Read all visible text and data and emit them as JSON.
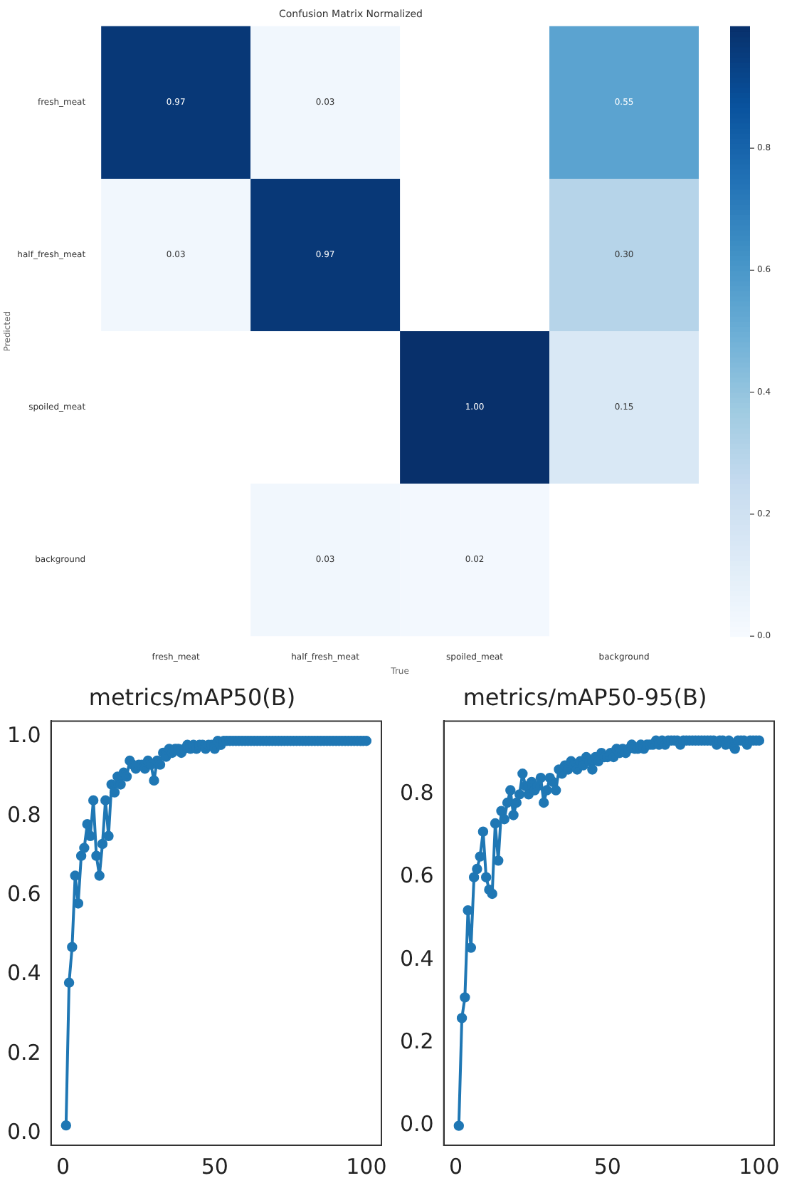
{
  "chart_data": [
    {
      "type": "heatmap",
      "title": "Confusion Matrix Normalized",
      "xlabel": "True",
      "ylabel": "Predicted",
      "categories": [
        "fresh_meat",
        "half_fresh_meat",
        "spoiled_meat",
        "background"
      ],
      "y_categories": [
        "fresh_meat",
        "half_fresh_meat",
        "spoiled_meat",
        "background"
      ],
      "cells": [
        [
          0.97,
          0.03,
          null,
          0.55
        ],
        [
          0.03,
          0.97,
          null,
          0.3
        ],
        [
          null,
          null,
          1.0,
          0.15
        ],
        [
          null,
          0.03,
          0.02,
          null
        ]
      ],
      "cell_labels": [
        [
          "0.97",
          "0.03",
          null,
          "0.55"
        ],
        [
          "0.03",
          "0.97",
          null,
          "0.30"
        ],
        [
          null,
          null,
          "1.00",
          "0.15"
        ],
        [
          null,
          "0.03",
          "0.02",
          null
        ]
      ],
      "clim": [
        0,
        1
      ],
      "cticks": [
        {
          "value": 0,
          "label": "0.0"
        },
        {
          "value": 0.2,
          "label": "0.2"
        },
        {
          "value": 0.4,
          "label": "0.4"
        },
        {
          "value": 0.6,
          "label": "0.6"
        },
        {
          "value": 0.8,
          "label": "0.8"
        }
      ]
    },
    {
      "type": "line",
      "title": "metrics/mAP50(B)",
      "marker": "circle",
      "grid": false,
      "x": [
        1,
        2,
        3,
        4,
        5,
        6,
        7,
        8,
        9,
        10,
        11,
        12,
        13,
        14,
        15,
        16,
        17,
        18,
        19,
        20,
        21,
        22,
        23,
        24,
        25,
        26,
        27,
        28,
        29,
        30,
        31,
        32,
        33,
        34,
        35,
        36,
        37,
        38,
        39,
        40,
        41,
        42,
        43,
        44,
        45,
        46,
        47,
        48,
        49,
        50,
        51,
        52,
        53,
        54,
        55,
        56,
        57,
        58,
        59,
        60,
        61,
        62,
        63,
        64,
        65,
        66,
        67,
        68,
        69,
        70,
        71,
        72,
        73,
        74,
        75,
        76,
        77,
        78,
        79,
        80,
        81,
        82,
        83,
        84,
        85,
        86,
        87,
        88,
        89,
        90,
        91,
        92,
        93,
        94,
        95,
        96,
        97,
        98,
        99,
        100
      ],
      "series": [
        {
          "color": "#1f77b4",
          "values": [
            0.02,
            0.38,
            0.47,
            0.65,
            0.58,
            0.7,
            0.72,
            0.78,
            0.75,
            0.84,
            0.7,
            0.65,
            0.73,
            0.84,
            0.75,
            0.88,
            0.86,
            0.9,
            0.88,
            0.91,
            0.9,
            0.94,
            0.93,
            0.92,
            0.93,
            0.93,
            0.92,
            0.94,
            0.93,
            0.89,
            0.94,
            0.93,
            0.96,
            0.95,
            0.97,
            0.96,
            0.97,
            0.97,
            0.96,
            0.97,
            0.98,
            0.97,
            0.98,
            0.97,
            0.98,
            0.98,
            0.97,
            0.98,
            0.98,
            0.97,
            0.99,
            0.98,
            0.99,
            0.99,
            0.99,
            0.99,
            0.99,
            0.99,
            0.99,
            0.99,
            0.99,
            0.99,
            0.99,
            0.99,
            0.99,
            0.99,
            0.99,
            0.99,
            0.99,
            0.99,
            0.99,
            0.99,
            0.99,
            0.99,
            0.99,
            0.99,
            0.99,
            0.99,
            0.99,
            0.99,
            0.99,
            0.99,
            0.99,
            0.99,
            0.99,
            0.99,
            0.99,
            0.99,
            0.99,
            0.99,
            0.99,
            0.99,
            0.99,
            0.99,
            0.99,
            0.99,
            0.99,
            0.99,
            0.99,
            0.99
          ]
        }
      ],
      "xlim": [
        -3.95,
        104.95
      ],
      "xticks": [
        0,
        50,
        100
      ],
      "ylim": [
        -0.03,
        1.04
      ],
      "yticks": [
        {
          "value": 0,
          "label": "0.0"
        },
        {
          "value": 0.2,
          "label": "0.2"
        },
        {
          "value": 0.4,
          "label": "0.4"
        },
        {
          "value": 0.6,
          "label": "0.6"
        },
        {
          "value": 0.8,
          "label": "0.8"
        },
        {
          "value": 1,
          "label": "1.0"
        }
      ]
    },
    {
      "type": "line",
      "title": "metrics/mAP50-95(B)",
      "marker": "circle",
      "grid": false,
      "x": [
        1,
        2,
        3,
        4,
        5,
        6,
        7,
        8,
        9,
        10,
        11,
        12,
        13,
        14,
        15,
        16,
        17,
        18,
        19,
        20,
        21,
        22,
        23,
        24,
        25,
        26,
        27,
        28,
        29,
        30,
        31,
        32,
        33,
        34,
        35,
        36,
        37,
        38,
        39,
        40,
        41,
        42,
        43,
        44,
        45,
        46,
        47,
        48,
        49,
        50,
        51,
        52,
        53,
        54,
        55,
        56,
        57,
        58,
        59,
        60,
        61,
        62,
        63,
        64,
        65,
        66,
        67,
        68,
        69,
        70,
        71,
        72,
        73,
        74,
        75,
        76,
        77,
        78,
        79,
        80,
        81,
        82,
        83,
        84,
        85,
        86,
        87,
        88,
        89,
        90,
        91,
        92,
        93,
        94,
        95,
        96,
        97,
        98,
        99,
        100
      ],
      "series": [
        {
          "color": "#1f77b4",
          "values": [
            0.0,
            0.26,
            0.31,
            0.52,
            0.43,
            0.6,
            0.62,
            0.65,
            0.71,
            0.6,
            0.57,
            0.56,
            0.73,
            0.64,
            0.76,
            0.74,
            0.78,
            0.81,
            0.75,
            0.78,
            0.8,
            0.85,
            0.82,
            0.8,
            0.83,
            0.81,
            0.82,
            0.84,
            0.78,
            0.81,
            0.84,
            0.83,
            0.81,
            0.86,
            0.85,
            0.87,
            0.86,
            0.88,
            0.87,
            0.86,
            0.88,
            0.87,
            0.89,
            0.88,
            0.86,
            0.89,
            0.88,
            0.9,
            0.89,
            0.89,
            0.9,
            0.89,
            0.91,
            0.9,
            0.91,
            0.9,
            0.91,
            0.92,
            0.91,
            0.91,
            0.92,
            0.91,
            0.92,
            0.92,
            0.92,
            0.93,
            0.92,
            0.93,
            0.92,
            0.93,
            0.93,
            0.93,
            0.93,
            0.92,
            0.93,
            0.93,
            0.93,
            0.93,
            0.93,
            0.93,
            0.93,
            0.93,
            0.93,
            0.93,
            0.93,
            0.92,
            0.93,
            0.93,
            0.92,
            0.93,
            0.92,
            0.91,
            0.93,
            0.93,
            0.93,
            0.92,
            0.93,
            0.93,
            0.93,
            0.93
          ]
        }
      ],
      "xlim": [
        -3.95,
        104.95
      ],
      "xticks": [
        0,
        50,
        100
      ],
      "ylim": [
        -0.047,
        0.977
      ],
      "yticks": [
        {
          "value": 0,
          "label": "0.0"
        },
        {
          "value": 0.2,
          "label": "0.2"
        },
        {
          "value": 0.4,
          "label": "0.4"
        },
        {
          "value": 0.6,
          "label": "0.6"
        },
        {
          "value": 0.8,
          "label": "0.8"
        }
      ]
    }
  ]
}
